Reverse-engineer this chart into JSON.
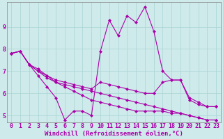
{
  "xlabel": "Windchill (Refroidissement éolien,°C)",
  "background_color": "#ceeaea",
  "line_color": "#aa00aa",
  "xlim": [
    -0.5,
    23.5
  ],
  "ylim": [
    4.7,
    10.1
  ],
  "yticks": [
    5,
    6,
    7,
    8,
    9
  ],
  "xticks": [
    0,
    1,
    2,
    3,
    4,
    5,
    6,
    7,
    8,
    9,
    10,
    11,
    12,
    13,
    14,
    15,
    16,
    17,
    18,
    19,
    20,
    21,
    22,
    23
  ],
  "series": [
    [
      7.8,
      7.9,
      7.3,
      6.8,
      6.3,
      5.8,
      4.8,
      5.2,
      5.2,
      5.0,
      7.9,
      9.3,
      8.6,
      9.5,
      9.2,
      9.9,
      8.8,
      7.0,
      6.6,
      6.6,
      5.7,
      5.5,
      5.4,
      5.4
    ],
    [
      7.8,
      7.9,
      7.3,
      7.1,
      6.8,
      6.6,
      6.5,
      6.4,
      6.3,
      6.2,
      6.5,
      6.4,
      6.3,
      6.2,
      6.1,
      6.0,
      6.0,
      6.5,
      6.6,
      6.6,
      5.8,
      5.6,
      5.4,
      5.4
    ],
    [
      7.8,
      7.9,
      7.3,
      7.0,
      6.7,
      6.5,
      6.3,
      6.1,
      5.9,
      5.7,
      5.6,
      5.5,
      5.4,
      5.3,
      5.2,
      5.2,
      5.2,
      5.2,
      5.1,
      5.1,
      5.0,
      4.9,
      4.8,
      4.8
    ],
    [
      7.8,
      7.9,
      7.3,
      7.0,
      6.8,
      6.5,
      6.4,
      6.3,
      6.2,
      6.1,
      6.0,
      5.9,
      5.8,
      5.7,
      5.6,
      5.5,
      5.4,
      5.3,
      5.2,
      5.1,
      5.0,
      4.9,
      4.8,
      4.8
    ]
  ],
  "xlabel_fontsize": 6.5,
  "tick_fontsize": 6.0,
  "grid_color": "#aad4d4",
  "line_width": 0.8,
  "marker": "D",
  "marker_size": 2.0
}
